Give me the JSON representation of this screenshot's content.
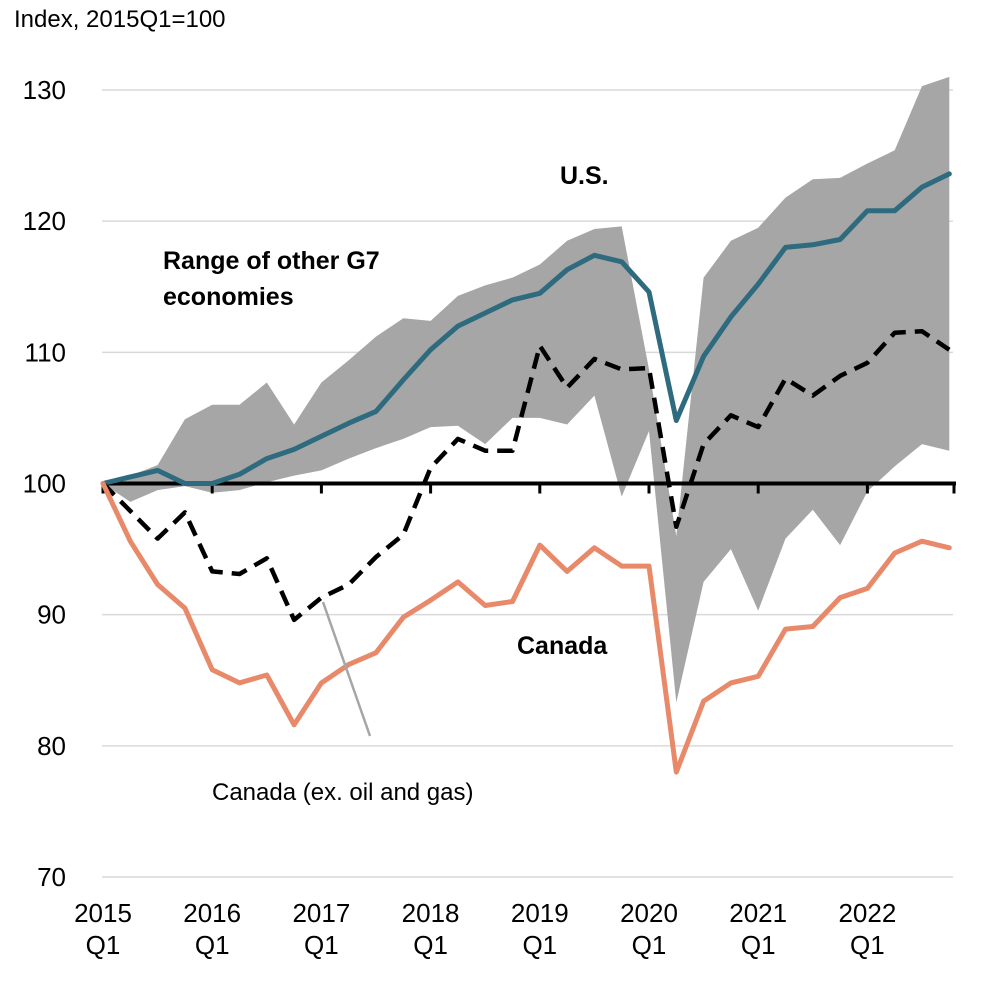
{
  "chart_data": {
    "type": "line",
    "ylabel": "Index, 2015Q1=100",
    "ylim": [
      70,
      130
    ],
    "yticks": [
      70,
      80,
      90,
      100,
      110,
      120,
      130
    ],
    "grid": true,
    "baseline": 100,
    "x": [
      "2015Q1",
      "2015Q2",
      "2015Q3",
      "2015Q4",
      "2016Q1",
      "2016Q2",
      "2016Q3",
      "2016Q4",
      "2017Q1",
      "2017Q2",
      "2017Q3",
      "2017Q4",
      "2018Q1",
      "2018Q2",
      "2018Q3",
      "2018Q4",
      "2019Q1",
      "2019Q2",
      "2019Q3",
      "2019Q4",
      "2020Q1",
      "2020Q2",
      "2020Q3",
      "2020Q4",
      "2021Q1",
      "2021Q2",
      "2021Q3",
      "2021Q4",
      "2022Q1",
      "2022Q2",
      "2022Q3",
      "2022Q4"
    ],
    "xticks": [
      {
        "index": 0,
        "year": "2015",
        "quarter": "Q1"
      },
      {
        "index": 4,
        "year": "2016",
        "quarter": "Q1"
      },
      {
        "index": 8,
        "year": "2017",
        "quarter": "Q1"
      },
      {
        "index": 12,
        "year": "2018",
        "quarter": "Q1"
      },
      {
        "index": 16,
        "year": "2019",
        "quarter": "Q1"
      },
      {
        "index": 20,
        "year": "2020",
        "quarter": "Q1"
      },
      {
        "index": 24,
        "year": "2021",
        "quarter": "Q1"
      },
      {
        "index": 28,
        "year": "2022",
        "quarter": "Q1"
      }
    ],
    "band": {
      "name": "Range of other G7 economies",
      "color": "#a6a6a6",
      "upper": [
        100,
        100.6,
        101.4,
        104.9,
        106.0,
        106.0,
        107.7,
        104.5,
        107.7,
        109.4,
        111.2,
        112.6,
        112.4,
        114.3,
        115.1,
        115.7,
        116.7,
        118.5,
        119.4,
        119.6,
        108.7,
        96.0,
        115.7,
        118.5,
        119.5,
        121.8,
        123.2,
        123.3,
        124.4,
        125.4,
        130.3,
        131.0
      ],
      "lower": [
        100,
        98.6,
        99.5,
        99.8,
        99.3,
        99.5,
        100.1,
        100.6,
        101.0,
        101.9,
        102.7,
        103.4,
        104.3,
        104.4,
        103.0,
        105.0,
        105.0,
        104.5,
        106.7,
        99.0,
        104.0,
        83.3,
        92.5,
        95.0,
        90.3,
        95.8,
        98.0,
        95.3,
        99.4,
        101.3,
        103.0,
        102.5
      ]
    },
    "series": [
      {
        "name": "U.S.",
        "color": "#2e6b7e",
        "dash": "solid",
        "values": [
          100,
          100.5,
          101.0,
          100.0,
          100.0,
          100.7,
          101.9,
          102.6,
          103.6,
          104.6,
          105.5,
          107.9,
          110.2,
          112.0,
          113.0,
          114.0,
          114.5,
          116.3,
          117.4,
          116.9,
          114.6,
          104.8,
          109.7,
          112.7,
          115.2,
          118.0,
          118.2,
          118.6,
          120.8,
          120.8,
          122.6,
          123.6
        ]
      },
      {
        "name": "Canada (ex. oil and gas)",
        "color": "#000000",
        "dash": "dashed",
        "values": [
          100,
          97.9,
          95.8,
          97.8,
          93.3,
          93.1,
          94.3,
          89.6,
          91.3,
          92.3,
          94.4,
          96.1,
          101.2,
          103.4,
          102.5,
          102.5,
          110.5,
          107.3,
          109.5,
          108.7,
          108.8,
          96.7,
          103.0,
          105.2,
          104.3,
          108.0,
          106.7,
          108.2,
          109.2,
          111.5,
          111.6,
          110.2
        ]
      },
      {
        "name": "Canada",
        "color": "#e8896a",
        "dash": "solid",
        "values": [
          100,
          95.6,
          92.3,
          90.5,
          85.8,
          84.8,
          85.4,
          81.6,
          84.8,
          86.2,
          87.1,
          89.8,
          91.1,
          92.5,
          90.7,
          91.0,
          95.3,
          93.3,
          95.1,
          93.7,
          93.7,
          78.0,
          83.4,
          84.8,
          85.3,
          88.9,
          89.1,
          91.3,
          92.0,
          94.7,
          95.6,
          95.1
        ]
      }
    ],
    "annotations": [
      {
        "text": "U.S.",
        "color": "#2e6b7e"
      },
      {
        "text": "Range of other G7",
        "color": "#808080"
      },
      {
        "text": "economies",
        "color": "#808080"
      },
      {
        "text": "Canada",
        "color": "#e8896a"
      },
      {
        "text": "Canada (ex. oil and gas)",
        "color": "#000000"
      }
    ]
  }
}
